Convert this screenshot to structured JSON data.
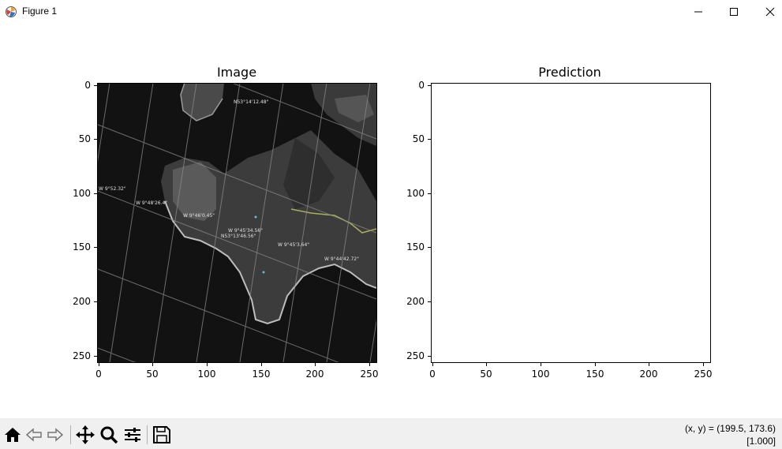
{
  "window": {
    "title": "Figure 1",
    "icons": [
      "matplotlib-app-icon",
      "minimize-icon",
      "maximize-icon",
      "close-icon"
    ]
  },
  "figure": {
    "axes": [
      {
        "title": "Image",
        "content": "satellite-image",
        "xticks": [
          "0",
          "50",
          "100",
          "150",
          "200",
          "250"
        ],
        "yticks": [
          "0",
          "50",
          "100",
          "150",
          "200",
          "250"
        ]
      },
      {
        "title": "Prediction",
        "content": "blank",
        "xticks": [
          "0",
          "50",
          "100",
          "150",
          "200",
          "250"
        ],
        "yticks": [
          "0",
          "50",
          "100",
          "150",
          "200",
          "250"
        ]
      }
    ],
    "image_annotations": [
      "N53°14'12.48\"",
      "W 9°52.32\"",
      "W 9°48'26.4\"",
      "W 9°46'0.45\"",
      "W 9°45'34.56\"",
      "N53°13'46.56\"",
      "W 9°45'3.64\"",
      "W 9°44'42.72\""
    ]
  },
  "toolbar": {
    "buttons": [
      "home-icon",
      "back-icon",
      "forward-icon",
      "pan-icon",
      "zoom-icon",
      "configure-subplots-icon",
      "save-icon"
    ],
    "coord_readout": "(x, y) = (199.5, 173.6)",
    "pixel_value": "[1.000]"
  }
}
